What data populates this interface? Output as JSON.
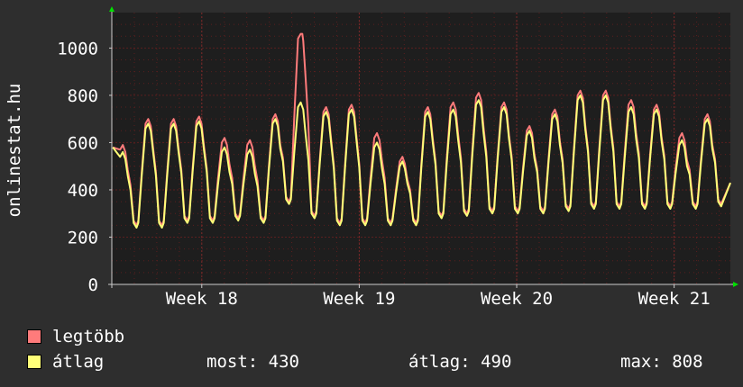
{
  "site_label": "onlinestat.hu",
  "chart_data": {
    "type": "line",
    "title": "",
    "ylabel": "onlinestat.hu",
    "ylim": [
      0,
      1150
    ],
    "yticks": [
      0,
      200,
      400,
      600,
      800,
      1000
    ],
    "xlim": [
      0,
      27.5
    ],
    "xticks": [
      {
        "label": "Week 18",
        "x": 4
      },
      {
        "label": "Week 19",
        "x": 11
      },
      {
        "label": "Week 20",
        "x": 18
      },
      {
        "label": "Week 21",
        "x": 25
      }
    ],
    "grid": true,
    "peaks_legtobb": [
      590,
      700,
      700,
      710,
      620,
      610,
      720,
      1060,
      750,
      760,
      640,
      540,
      750,
      770,
      810,
      770,
      670,
      740,
      820,
      820,
      780,
      760,
      640,
      720
    ],
    "peaks_atlag": [
      560,
      680,
      680,
      690,
      580,
      570,
      700,
      770,
      730,
      740,
      600,
      520,
      730,
      740,
      780,
      750,
      650,
      720,
      800,
      800,
      750,
      740,
      610,
      700
    ],
    "troughs": [
      240,
      240,
      260,
      260,
      270,
      260,
      340,
      280,
      250,
      250,
      250,
      250,
      280,
      290,
      300,
      300,
      300,
      310,
      320,
      320,
      320,
      320,
      320,
      330
    ],
    "series": [
      {
        "name": "legtöbb",
        "color": "#ff7b7b"
      },
      {
        "name": "átlag",
        "color": "#ffff78"
      }
    ]
  },
  "legend": {
    "series_1": "legtöbb",
    "series_2": "átlag"
  },
  "stats": {
    "most": "most: 430",
    "atlag": "átlag: 490",
    "max": "max: 808"
  },
  "colors": {
    "background": "#2e2e2e",
    "plot_background": "#1e1e1e",
    "grid": "#5a1f1f",
    "axis_arrow": "#00e000",
    "legtobb": "#ff7b7b",
    "atlag": "#ffff78"
  }
}
